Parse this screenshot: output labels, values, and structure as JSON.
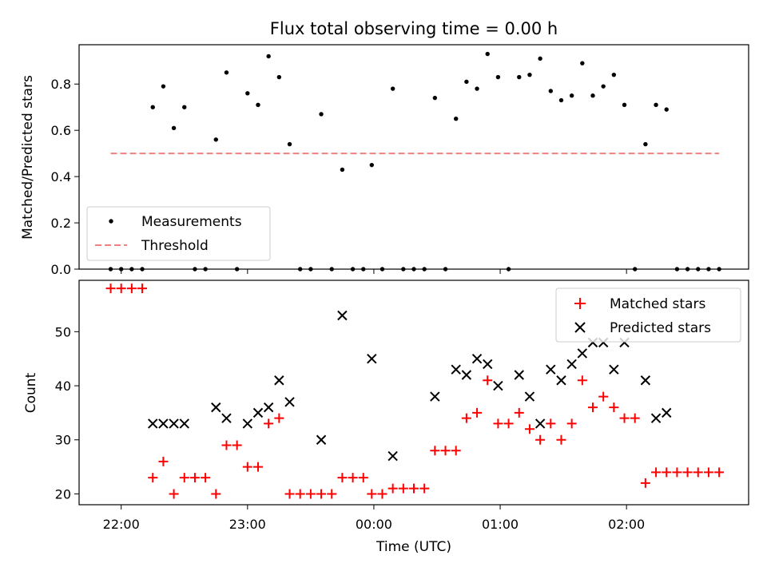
{
  "chart_data": [
    {
      "type": "scatter",
      "title": "Flux total observing time = 0.00 h",
      "xlabel": "",
      "ylabel": "Matched/Predicted stars",
      "ylim": [
        0,
        0.97
      ],
      "yticks": [
        "0.0",
        "0.2",
        "0.4",
        "0.6",
        "0.8"
      ],
      "ytick_values": [
        0,
        0.2,
        0.4,
        0.6,
        0.8
      ],
      "legend_position": "lower-left",
      "series": [
        {
          "name": "Measurements",
          "marker": "dot",
          "color": "#000000",
          "points": [
            [
              "21:55",
              0.0
            ],
            [
              "22:00",
              0.0
            ],
            [
              "22:05",
              0.0
            ],
            [
              "22:10",
              0.0
            ],
            [
              "22:15",
              0.7
            ],
            [
              "22:20",
              0.79
            ],
            [
              "22:25",
              0.61
            ],
            [
              "22:30",
              0.7
            ],
            [
              "22:35",
              0.0
            ],
            [
              "22:40",
              0.0
            ],
            [
              "22:45",
              0.56
            ],
            [
              "22:50",
              0.85
            ],
            [
              "22:55",
              0.0
            ],
            [
              "23:00",
              0.76
            ],
            [
              "23:05",
              0.71
            ],
            [
              "23:10",
              0.92
            ],
            [
              "23:15",
              0.83
            ],
            [
              "23:20",
              0.54
            ],
            [
              "23:25",
              0.0
            ],
            [
              "23:30",
              0.0
            ],
            [
              "23:35",
              0.67
            ],
            [
              "23:40",
              0.0
            ],
            [
              "23:45",
              0.43
            ],
            [
              "23:50",
              0.0
            ],
            [
              "23:55",
              0.0
            ],
            [
              "23:59",
              0.45
            ],
            [
              "00:04",
              0.0
            ],
            [
              "00:09",
              0.78
            ],
            [
              "00:14",
              0.0
            ],
            [
              "00:19",
              0.0
            ],
            [
              "00:24",
              0.0
            ],
            [
              "00:29",
              0.74
            ],
            [
              "00:34",
              0.0
            ],
            [
              "00:39",
              0.65
            ],
            [
              "00:44",
              0.81
            ],
            [
              "00:49",
              0.78
            ],
            [
              "00:54",
              0.93
            ],
            [
              "00:59",
              0.83
            ],
            [
              "01:04",
              0.0
            ],
            [
              "01:09",
              0.83
            ],
            [
              "01:14",
              0.84
            ],
            [
              "01:19",
              0.91
            ],
            [
              "01:24",
              0.77
            ],
            [
              "01:29",
              0.73
            ],
            [
              "01:34",
              0.75
            ],
            [
              "01:39",
              0.89
            ],
            [
              "01:44",
              0.75
            ],
            [
              "01:49",
              0.79
            ],
            [
              "01:54",
              0.84
            ],
            [
              "01:59",
              0.71
            ],
            [
              "02:04",
              0.0
            ],
            [
              "02:09",
              0.54
            ],
            [
              "02:14",
              0.71
            ],
            [
              "02:19",
              0.69
            ],
            [
              "02:24",
              0.0
            ],
            [
              "02:29",
              0.0
            ],
            [
              "02:34",
              0.0
            ],
            [
              "02:39",
              0.0
            ],
            [
              "02:44",
              0.0
            ]
          ]
        },
        {
          "name": "Threshold",
          "line": "dashed",
          "color": "#f08080",
          "points": [
            [
              "21:55",
              0.5
            ],
            [
              "02:44",
              0.5
            ]
          ]
        }
      ]
    },
    {
      "type": "scatter",
      "title": "",
      "xlabel": "Time (UTC)",
      "ylabel": "Count",
      "ylim": [
        18,
        59.5
      ],
      "yticks": [
        "20",
        "30",
        "40",
        "50"
      ],
      "ytick_values": [
        20,
        30,
        40,
        50
      ],
      "xticks": [
        "22:00",
        "23:00",
        "00:00",
        "01:00",
        "02:00"
      ],
      "legend_position": "upper-right",
      "series": [
        {
          "name": "Matched stars",
          "marker": "plus",
          "color": "#ff0000",
          "points": [
            [
              "21:55",
              58
            ],
            [
              "22:00",
              58
            ],
            [
              "22:05",
              58
            ],
            [
              "22:10",
              58
            ],
            [
              "22:15",
              23
            ],
            [
              "22:20",
              26
            ],
            [
              "22:25",
              20
            ],
            [
              "22:30",
              23
            ],
            [
              "22:35",
              23
            ],
            [
              "22:40",
              23
            ],
            [
              "22:45",
              20
            ],
            [
              "22:50",
              29
            ],
            [
              "22:55",
              29
            ],
            [
              "23:00",
              25
            ],
            [
              "23:05",
              25
            ],
            [
              "23:10",
              33
            ],
            [
              "23:15",
              34
            ],
            [
              "23:20",
              20
            ],
            [
              "23:25",
              20
            ],
            [
              "23:30",
              20
            ],
            [
              "23:35",
              20
            ],
            [
              "23:40",
              20
            ],
            [
              "23:45",
              23
            ],
            [
              "23:50",
              23
            ],
            [
              "23:55",
              23
            ],
            [
              "23:59",
              20
            ],
            [
              "00:04",
              20
            ],
            [
              "00:09",
              21
            ],
            [
              "00:14",
              21
            ],
            [
              "00:19",
              21
            ],
            [
              "00:24",
              21
            ],
            [
              "00:29",
              28
            ],
            [
              "00:34",
              28
            ],
            [
              "00:39",
              28
            ],
            [
              "00:44",
              34
            ],
            [
              "00:49",
              35
            ],
            [
              "00:54",
              41
            ],
            [
              "00:59",
              33
            ],
            [
              "01:04",
              33
            ],
            [
              "01:09",
              35
            ],
            [
              "01:14",
              32
            ],
            [
              "01:19",
              30
            ],
            [
              "01:24",
              33
            ],
            [
              "01:29",
              30
            ],
            [
              "01:34",
              33
            ],
            [
              "01:39",
              41
            ],
            [
              "01:44",
              36
            ],
            [
              "01:49",
              38
            ],
            [
              "01:54",
              36
            ],
            [
              "01:59",
              34
            ],
            [
              "02:04",
              34
            ],
            [
              "02:09",
              22
            ],
            [
              "02:14",
              24
            ],
            [
              "02:19",
              24
            ],
            [
              "02:24",
              24
            ],
            [
              "02:29",
              24
            ],
            [
              "02:34",
              24
            ],
            [
              "02:39",
              24
            ],
            [
              "02:44",
              24
            ]
          ]
        },
        {
          "name": "Predicted stars",
          "marker": "x",
          "color": "#000000",
          "points": [
            [
              "22:15",
              33
            ],
            [
              "22:20",
              33
            ],
            [
              "22:25",
              33
            ],
            [
              "22:30",
              33
            ],
            [
              "22:45",
              36
            ],
            [
              "22:50",
              34
            ],
            [
              "23:00",
              33
            ],
            [
              "23:05",
              35
            ],
            [
              "23:10",
              36
            ],
            [
              "23:15",
              41
            ],
            [
              "23:20",
              37
            ],
            [
              "23:35",
              30
            ],
            [
              "23:45",
              53
            ],
            [
              "23:59",
              45
            ],
            [
              "00:09",
              27
            ],
            [
              "00:29",
              38
            ],
            [
              "00:39",
              43
            ],
            [
              "00:44",
              42
            ],
            [
              "00:49",
              45
            ],
            [
              "00:54",
              44
            ],
            [
              "00:59",
              40
            ],
            [
              "01:09",
              42
            ],
            [
              "01:14",
              38
            ],
            [
              "01:19",
              33
            ],
            [
              "01:24",
              43
            ],
            [
              "01:29",
              41
            ],
            [
              "01:34",
              44
            ],
            [
              "01:39",
              46
            ],
            [
              "01:44",
              48
            ],
            [
              "01:49",
              48
            ],
            [
              "01:54",
              43
            ],
            [
              "01:59",
              48
            ],
            [
              "02:09",
              41
            ],
            [
              "02:14",
              34
            ],
            [
              "02:19",
              35
            ]
          ]
        }
      ]
    }
  ]
}
